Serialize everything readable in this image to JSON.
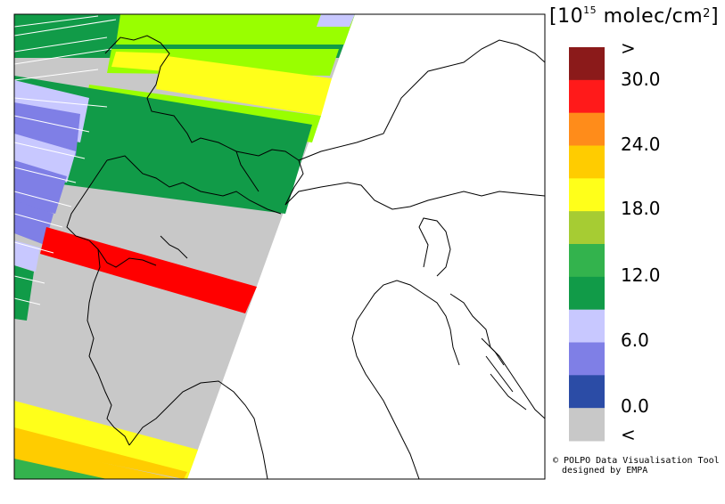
{
  "legend": {
    "unit_open": "[10",
    "unit_exp": "15",
    "unit_mid": " molec/cm",
    "unit_sq": "2",
    "unit_close": "]",
    "ticks": [
      ">",
      "30.0",
      "24.0",
      "18.0",
      "12.0",
      "6.0",
      "0.0",
      "<"
    ],
    "bins": [
      {
        "color": "#8b1a1a"
      },
      {
        "color": "#ff1a1a"
      },
      {
        "color": "#ff8c1a"
      },
      {
        "color": "#ffcc00"
      },
      {
        "color": "#ffff1a"
      },
      {
        "color": "#a6cc33"
      },
      {
        "color": "#33b34d"
      },
      {
        "color": "#119b48"
      },
      {
        "color": "#c8c8ff"
      },
      {
        "color": "#7f7fe6"
      },
      {
        "color": "#2b4ca6"
      },
      {
        "color": "#c8c8c8"
      }
    ]
  },
  "credit": {
    "line1": "© POLPO Data Visualisation Tool",
    "line2": "designed by EMPA"
  }
}
